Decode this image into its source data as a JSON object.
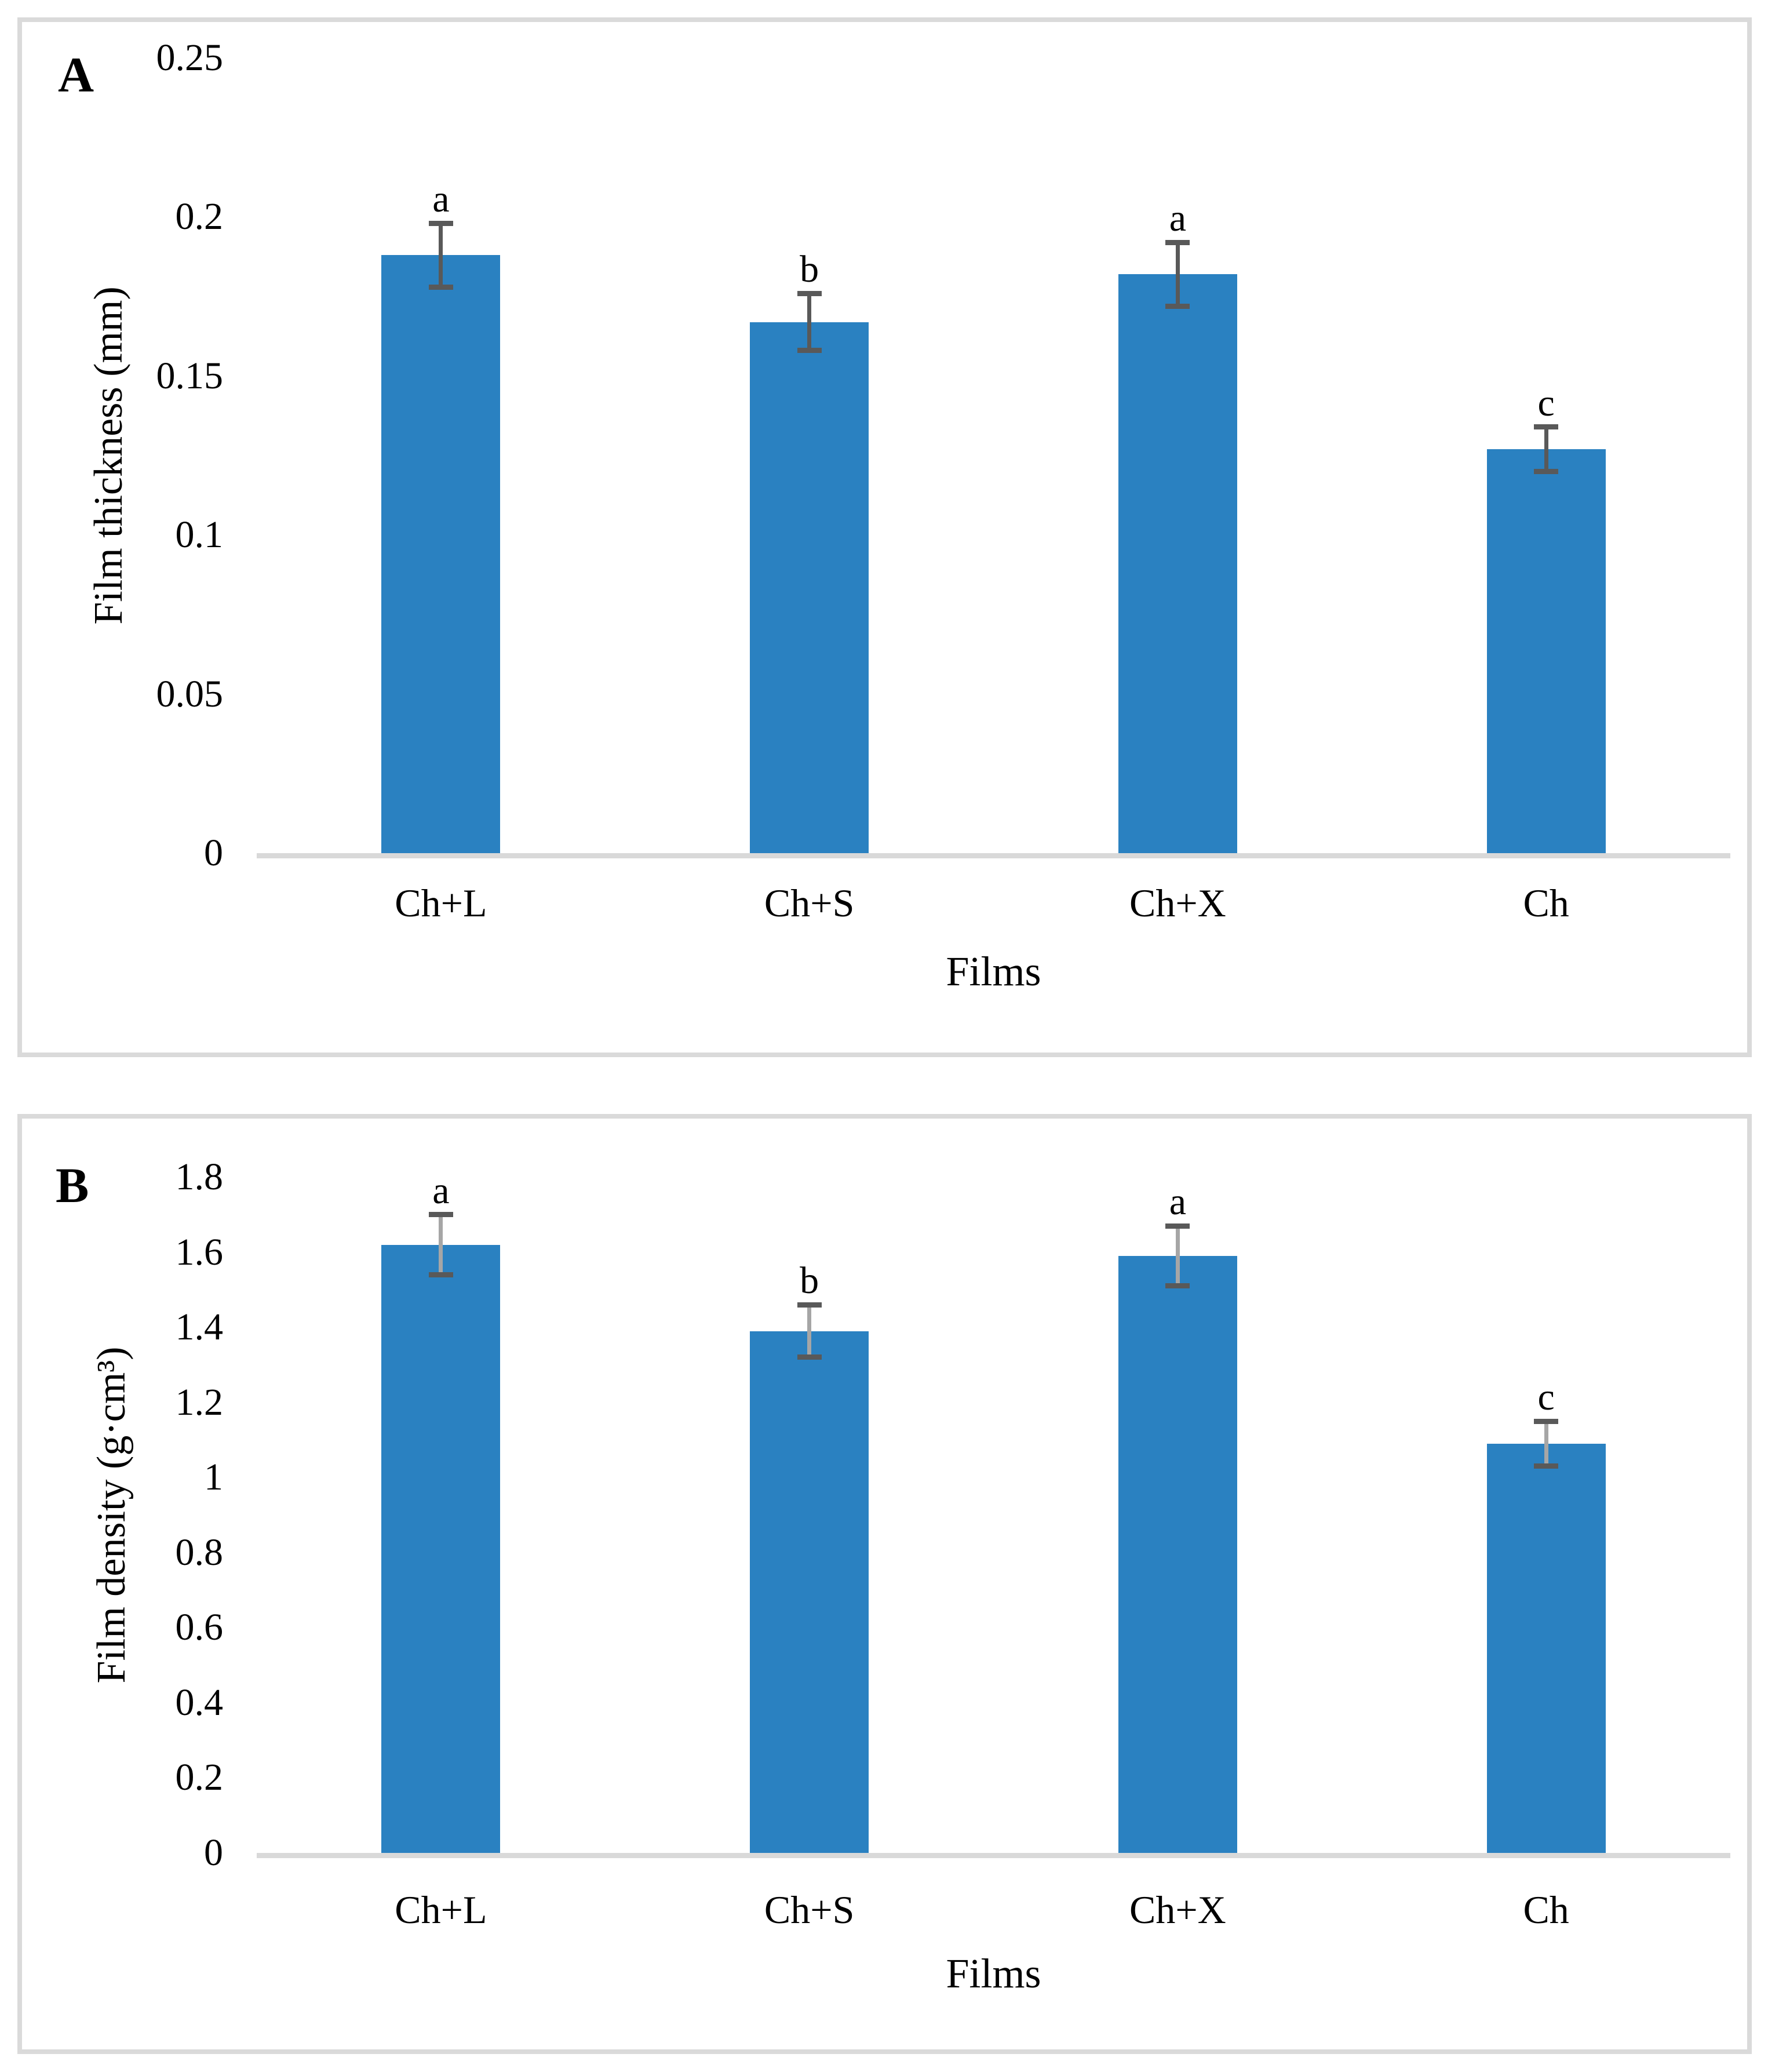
{
  "figure": {
    "background": "#ffffff",
    "panel_border_color": "#dadada"
  },
  "chart_data": [
    {
      "type": "bar",
      "panel_label": "A",
      "title": "",
      "ylabel": "Film thickness (mm)",
      "xlabel": "Films",
      "categories": [
        "Ch+L",
        "Ch+S",
        "Ch+X",
        "Ch"
      ],
      "values": [
        0.188,
        0.167,
        0.182,
        0.127
      ],
      "errors": [
        0.01,
        0.009,
        0.01,
        0.007
      ],
      "sig_letters": [
        "a",
        "b",
        "a",
        "c"
      ],
      "yticks": [
        "0.25",
        "0.2",
        "0.15",
        "0.1",
        "0.05",
        "0"
      ],
      "ylim": [
        0,
        0.25
      ],
      "grid": false,
      "legend": null,
      "bar_color": "#2a81c1",
      "error_line_color": "#595959",
      "error_cap_color": "#595959",
      "axis_line_color": "#d9d9d9"
    },
    {
      "type": "bar",
      "panel_label": "B",
      "title": "",
      "ylabel": "Film density (g·cm³)",
      "xlabel": "Films",
      "categories": [
        "Ch+L",
        "Ch+S",
        "Ch+X",
        "Ch"
      ],
      "values": [
        1.62,
        1.39,
        1.59,
        1.09
      ],
      "errors": [
        0.08,
        0.07,
        0.08,
        0.06
      ],
      "sig_letters": [
        "a",
        "b",
        "a",
        "c"
      ],
      "yticks": [
        "1.8",
        "1.6",
        "1.4",
        "1.2",
        "1",
        "0.8",
        "0.6",
        "0.4",
        "0.2",
        "0"
      ],
      "ylim": [
        0,
        1.8
      ],
      "grid": false,
      "legend": null,
      "bar_color": "#2a81c1",
      "error_line_color": "#a6a6a6",
      "error_cap_color": "#595959",
      "axis_line_color": "#d9d9d9"
    }
  ]
}
